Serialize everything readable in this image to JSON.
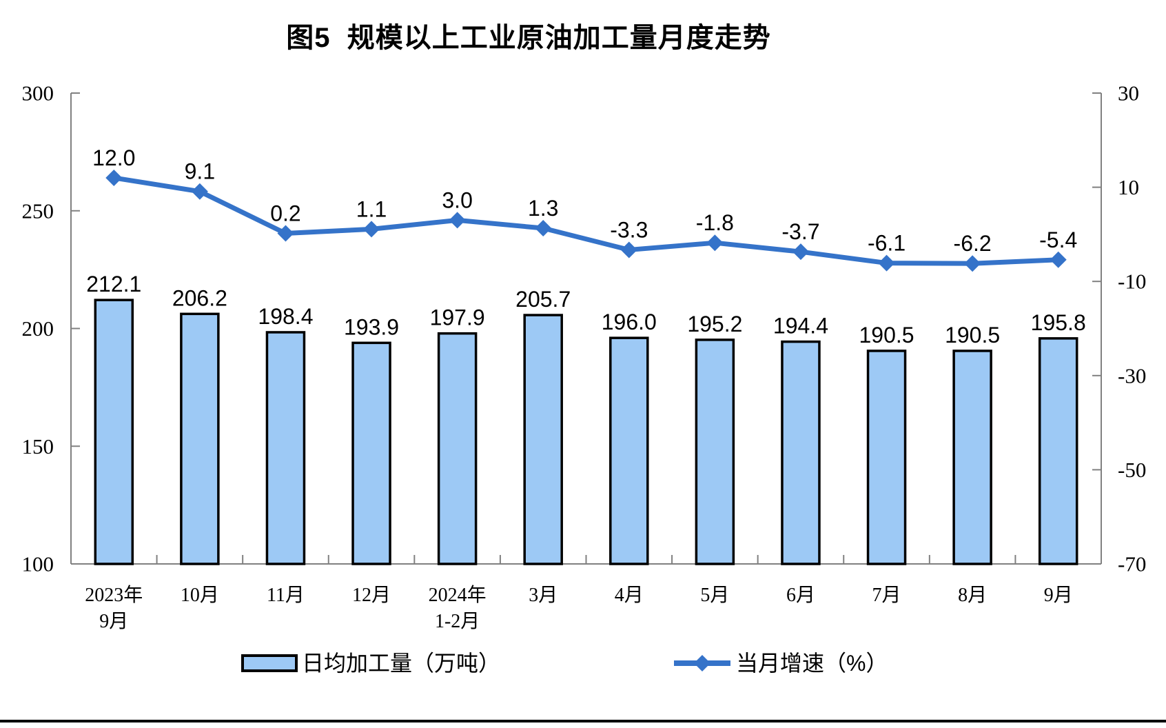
{
  "title": "图5  规模以上工业原油加工量月度走势",
  "legend": {
    "bar_label": "日均加工量（万吨）",
    "line_label": "当月增速（%）"
  },
  "colors": {
    "bar_fill": "#9DC9F5",
    "bar_border": "#000000",
    "line": "#3573C9",
    "axis": "#808080",
    "text": "#000000"
  },
  "chart_data": {
    "type": "bar",
    "combo": "bar+line dual-axis",
    "title": "图5  规模以上工业原油加工量月度走势",
    "categories": [
      "2023年\n9月",
      "10月",
      "11月",
      "12月",
      "2024年\n1-2月",
      "3月",
      "4月",
      "5月",
      "6月",
      "7月",
      "8月",
      "9月"
    ],
    "series": [
      {
        "name": "日均加工量（万吨）",
        "type": "bar",
        "axis": "left",
        "values": [
          212.1,
          206.2,
          198.4,
          193.9,
          197.9,
          205.7,
          196.0,
          195.2,
          194.4,
          190.5,
          190.5,
          195.8
        ]
      },
      {
        "name": "当月增速（%）",
        "type": "line",
        "axis": "right",
        "values": [
          12.0,
          9.1,
          0.2,
          1.1,
          3.0,
          1.3,
          -3.3,
          -1.8,
          -3.7,
          -6.1,
          -6.2,
          -5.4
        ]
      }
    ],
    "left_axis": {
      "min": 100,
      "max": 300,
      "ticks": [
        300,
        250,
        200,
        150,
        100
      ]
    },
    "right_axis": {
      "min": -70,
      "max": 30,
      "ticks": [
        30,
        10,
        -10,
        -30,
        -50,
        -70
      ]
    },
    "grid": false,
    "data_labels": true,
    "legend_position": "bottom"
  }
}
